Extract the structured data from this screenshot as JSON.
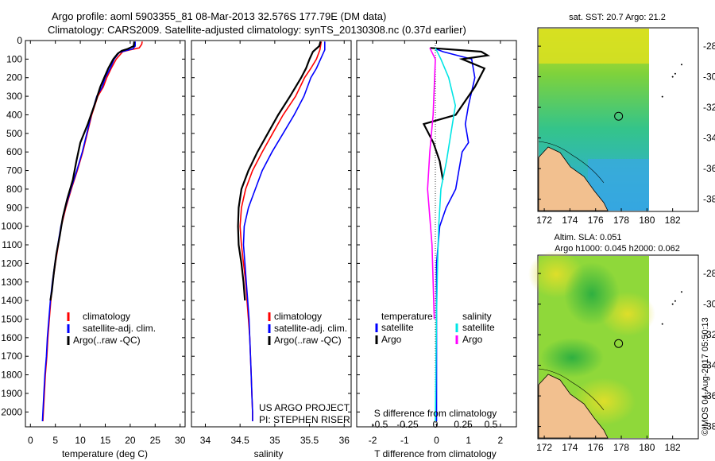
{
  "header": {
    "line1": "Argo profile: aoml 5903355_81 08-Mar-2013 32.576S 177.79E (DM data)",
    "line2": "Climatology: CARS2009. Satellite-adjusted climatology: synTS_20130308.nc (0.37d earlier)"
  },
  "colors": {
    "climatology": "#ff0000",
    "satellite": "#0000ff",
    "argo": "#000000",
    "cyan": "#00e5e5",
    "magenta": "#ff00ff",
    "land": "#f2c08f"
  },
  "chart_data": [
    {
      "type": "line",
      "xlabel": "temperature (deg C)",
      "ylabel": "",
      "xlim": [
        -1,
        31
      ],
      "ylim": [
        2080,
        0
      ],
      "xticks": [
        "0",
        "5",
        "10",
        "15",
        "20",
        "25",
        "30"
      ],
      "xtick_values": [
        0,
        5,
        10,
        15,
        20,
        25,
        30
      ],
      "yticks": [
        "0",
        "100",
        "200",
        "300",
        "400",
        "500",
        "600",
        "700",
        "800",
        "900",
        "1000",
        "1100",
        "1200",
        "1300",
        "1400",
        "1500",
        "1600",
        "1700",
        "1800",
        "1900",
        "2000"
      ],
      "ytick_values": [
        0,
        100,
        200,
        300,
        400,
        500,
        600,
        700,
        800,
        900,
        1000,
        1100,
        1200,
        1300,
        1400,
        1500,
        1600,
        1700,
        1800,
        1900,
        2000
      ],
      "legend": [
        "climatology",
        "satellite-adj. clim.",
        "Argo(..raw -QC)"
      ],
      "series": [
        {
          "name": "climatology",
          "color": "#ff0000",
          "points": [
            [
              22.4,
              5
            ],
            [
              22.3,
              20
            ],
            [
              21.8,
              40
            ],
            [
              20,
              50
            ],
            [
              18.5,
              60
            ],
            [
              17.2,
              100
            ],
            [
              16.2,
              150
            ],
            [
              15.3,
              200
            ],
            [
              14.6,
              250
            ],
            [
              13.5,
              300
            ],
            [
              12.3,
              400
            ],
            [
              11.4,
              500
            ],
            [
              10.5,
              600
            ],
            [
              9.4,
              700
            ],
            [
              8.2,
              800
            ],
            [
              7.1,
              900
            ],
            [
              6.2,
              1000
            ],
            [
              5.6,
              1100
            ],
            [
              5.0,
              1200
            ],
            [
              4.5,
              1300
            ],
            [
              4.1,
              1400
            ],
            [
              3.8,
              1500
            ],
            [
              3.5,
              1600
            ],
            [
              3.3,
              1700
            ],
            [
              3.0,
              1800
            ],
            [
              2.8,
              1900
            ],
            [
              2.6,
              2000
            ],
            [
              2.5,
              2050
            ]
          ]
        },
        {
          "name": "satellite-adj. clim.",
          "color": "#0000ff",
          "points": [
            [
              21.0,
              5
            ],
            [
              21.0,
              30
            ],
            [
              20.5,
              45
            ],
            [
              19,
              55
            ],
            [
              17.8,
              65
            ],
            [
              16.8,
              100
            ],
            [
              16.0,
              150
            ],
            [
              15.0,
              200
            ],
            [
              14.4,
              250
            ],
            [
              13.3,
              300
            ],
            [
              12.2,
              400
            ],
            [
              11.3,
              500
            ],
            [
              10.4,
              600
            ],
            [
              9.3,
              700
            ],
            [
              8.1,
              800
            ],
            [
              7.0,
              900
            ],
            [
              6.1,
              1000
            ],
            [
              5.5,
              1100
            ],
            [
              4.9,
              1200
            ],
            [
              4.4,
              1300
            ],
            [
              4.0,
              1400
            ],
            [
              3.7,
              1500
            ],
            [
              3.4,
              1600
            ],
            [
              3.2,
              1700
            ],
            [
              2.9,
              1800
            ],
            [
              2.7,
              1900
            ],
            [
              2.5,
              2000
            ],
            [
              2.4,
              2050
            ]
          ]
        },
        {
          "name": "Argo(..raw -QC)",
          "color": "#000000",
          "points": [
            [
              20.8,
              5
            ],
            [
              20.7,
              30
            ],
            [
              19.5,
              45
            ],
            [
              18.3,
              55
            ],
            [
              17.5,
              70
            ],
            [
              16.6,
              100
            ],
            [
              15.6,
              150
            ],
            [
              14.8,
              200
            ],
            [
              14.0,
              250
            ],
            [
              12.8,
              350
            ],
            [
              11.5,
              450
            ],
            [
              10.0,
              550
            ],
            [
              9.2,
              650
            ],
            [
              8.5,
              750
            ],
            [
              7.4,
              850
            ],
            [
              6.5,
              950
            ],
            [
              5.9,
              1050
            ],
            [
              5.2,
              1150
            ],
            [
              4.7,
              1250
            ],
            [
              4.3,
              1350
            ],
            [
              4.0,
              1400
            ]
          ]
        }
      ]
    },
    {
      "type": "line",
      "xlabel": "salinity",
      "ylabel": "",
      "xlim": [
        33.8,
        36.1
      ],
      "ylim": [
        2080,
        0
      ],
      "xticks": [
        "34",
        "34.5",
        "35",
        "35.5",
        "36"
      ],
      "xtick_values": [
        34,
        34.5,
        35,
        35.5,
        36
      ],
      "legend": [
        "climatology",
        "satellite-adj. clim.",
        "Argo(..raw -QC)"
      ],
      "annotations": [
        "US ARGO PROJECT",
        "PI: STEPHEN RISER"
      ],
      "series": [
        {
          "name": "climatology",
          "color": "#ff0000",
          "points": [
            [
              35.67,
              5
            ],
            [
              35.65,
              50
            ],
            [
              35.6,
              100
            ],
            [
              35.52,
              150
            ],
            [
              35.43,
              200
            ],
            [
              35.3,
              300
            ],
            [
              35.12,
              400
            ],
            [
              34.97,
              500
            ],
            [
              34.82,
              600
            ],
            [
              34.68,
              700
            ],
            [
              34.58,
              800
            ],
            [
              34.52,
              900
            ],
            [
              34.5,
              1000
            ],
            [
              34.52,
              1100
            ],
            [
              34.55,
              1200
            ],
            [
              34.58,
              1300
            ],
            [
              34.6,
              1400
            ],
            [
              34.62,
              1500
            ],
            [
              34.64,
              1600
            ],
            [
              34.65,
              1700
            ],
            [
              34.66,
              1800
            ],
            [
              34.67,
              1900
            ],
            [
              34.68,
              2000
            ],
            [
              34.68,
              2050
            ]
          ]
        },
        {
          "name": "satellite-adj. clim.",
          "color": "#0000ff",
          "points": [
            [
              35.72,
              5
            ],
            [
              35.72,
              50
            ],
            [
              35.66,
              100
            ],
            [
              35.6,
              150
            ],
            [
              35.52,
              200
            ],
            [
              35.42,
              300
            ],
            [
              35.28,
              400
            ],
            [
              35.12,
              500
            ],
            [
              34.96,
              600
            ],
            [
              34.82,
              700
            ],
            [
              34.72,
              800
            ],
            [
              34.62,
              900
            ],
            [
              34.56,
              1000
            ],
            [
              34.55,
              1100
            ],
            [
              34.57,
              1200
            ],
            [
              34.59,
              1300
            ],
            [
              34.61,
              1400
            ],
            [
              34.63,
              1500
            ],
            [
              34.64,
              1600
            ],
            [
              34.65,
              1700
            ],
            [
              34.66,
              1800
            ],
            [
              34.67,
              1900
            ],
            [
              34.68,
              2000
            ],
            [
              34.68,
              2050
            ]
          ]
        },
        {
          "name": "Argo(..raw -QC)",
          "color": "#000000",
          "points": [
            [
              35.66,
              5
            ],
            [
              35.64,
              30
            ],
            [
              35.55,
              60
            ],
            [
              35.5,
              100
            ],
            [
              35.45,
              150
            ],
            [
              35.38,
              200
            ],
            [
              35.22,
              300
            ],
            [
              35.05,
              400
            ],
            [
              34.9,
              500
            ],
            [
              34.75,
              600
            ],
            [
              34.62,
              700
            ],
            [
              34.52,
              800
            ],
            [
              34.48,
              900
            ],
            [
              34.47,
              1000
            ],
            [
              34.48,
              1100
            ],
            [
              34.52,
              1200
            ],
            [
              34.55,
              1300
            ],
            [
              34.57,
              1400
            ]
          ]
        }
      ]
    },
    {
      "type": "line",
      "xlabel": "T difference from climatology",
      "title_bottom": "S difference from climatology",
      "xlim": [
        -2.5,
        2.5
      ],
      "ylim": [
        2080,
        0
      ],
      "xticks": [
        "-2",
        "-1",
        "0",
        "1",
        "2"
      ],
      "xtick_values": [
        -2,
        -1,
        0,
        1,
        2
      ],
      "sticks": [
        "-0.5",
        "-0.25",
        "0",
        "0.25",
        "0.5"
      ],
      "stick_values": [
        -0.5,
        -0.25,
        0,
        0.25,
        0.5
      ],
      "legend": {
        "temperature": "temperature",
        "salinity": "salinity",
        "items": [
          "satellite",
          "Argo",
          "satellite",
          "Argo"
        ]
      },
      "series": [
        {
          "name": "T satellite",
          "color": "#0000ff",
          "points": [
            [
              -0.1,
              40
            ],
            [
              0.2,
              60
            ],
            [
              1.1,
              100
            ],
            [
              1.2,
              200
            ],
            [
              1.0,
              350
            ],
            [
              0.9,
              450
            ],
            [
              1.0,
              550
            ],
            [
              0.8,
              600
            ],
            [
              0.7,
              700
            ],
            [
              0.6,
              800
            ],
            [
              0.3,
              900
            ],
            [
              0.1,
              1000
            ],
            [
              0.05,
              1100
            ],
            [
              0.0,
              1200
            ],
            [
              0.0,
              1400
            ],
            [
              0.0,
              1800
            ],
            [
              0.0,
              2050
            ]
          ]
        },
        {
          "name": "T Argo",
          "color": "#000000",
          "points": [
            [
              -0.2,
              40
            ],
            [
              1.4,
              60
            ],
            [
              1.6,
              80
            ],
            [
              0.8,
              100
            ],
            [
              1.5,
              150
            ],
            [
              1.2,
              250
            ],
            [
              0.6,
              400
            ],
            [
              -0.4,
              450
            ],
            [
              -0.1,
              550
            ],
            [
              0.1,
              650
            ],
            [
              0.2,
              750
            ]
          ]
        },
        {
          "name": "S satellite",
          "color": "#00e5e5",
          "points": [
            [
              0.0,
              40
            ],
            [
              0.05,
              100
            ],
            [
              0.12,
              200
            ],
            [
              0.18,
              350
            ],
            [
              0.14,
              500
            ],
            [
              0.1,
              650
            ],
            [
              0.05,
              800
            ],
            [
              0.03,
              1000
            ],
            [
              0.02,
              1200
            ],
            [
              0.01,
              1500
            ],
            [
              0.0,
              2050
            ]
          ]
        },
        {
          "name": "S Argo",
          "color": "#ff00ff",
          "points": [
            [
              -0.05,
              40
            ],
            [
              0.0,
              100
            ],
            [
              -0.02,
              400
            ],
            [
              -0.05,
              600
            ],
            [
              -0.07,
              800
            ],
            [
              -0.05,
              950
            ],
            [
              -0.03,
              1100
            ],
            [
              -0.02,
              1300
            ],
            [
              -0.01,
              1500
            ]
          ]
        }
      ]
    }
  ],
  "maps": {
    "sst": {
      "title": "sat. SST: 20.7 Argo: 21.2",
      "xticks": [
        "172",
        "174",
        "176",
        "178",
        "180",
        "182"
      ],
      "xtick_values": [
        172,
        174,
        176,
        178,
        180,
        182
      ],
      "yticks": [
        "-28",
        "-30",
        "-32",
        "-34",
        "-36",
        "-38"
      ],
      "ytick_values": [
        -28,
        -30,
        -32,
        -34,
        -36,
        -38
      ],
      "argo_lon": 177.79,
      "argo_lat": -32.576
    },
    "sla": {
      "title1": "Altim. SLA: 0.051",
      "title2": "Argo h1000: 0.045 h2000: 0.062",
      "xticks": [
        "172",
        "174",
        "176",
        "178",
        "180",
        "182"
      ],
      "xtick_values": [
        172,
        174,
        176,
        178,
        180,
        182
      ],
      "yticks": [
        "-28",
        "-30",
        "-32",
        "-34",
        "-36",
        "-38"
      ],
      "ytick_values": [
        -28,
        -30,
        -32,
        -34,
        -36,
        -38
      ],
      "argo_lon": 177.79,
      "argo_lat": -32.576
    }
  },
  "footer": {
    "credit": "©IMOS 04-Aug-2017 05:50:13"
  }
}
